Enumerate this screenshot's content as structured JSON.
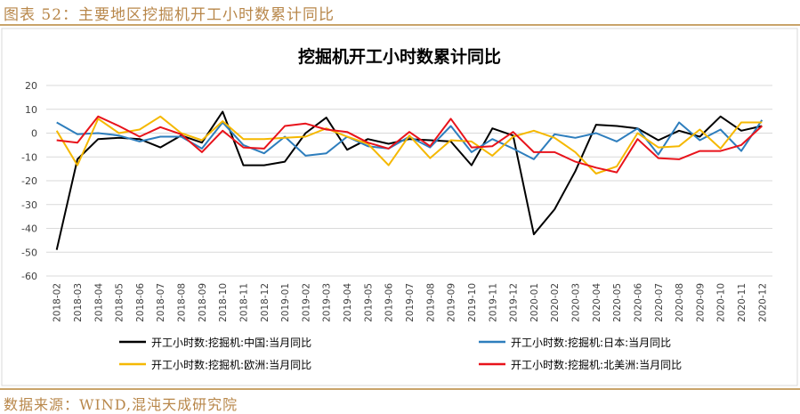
{
  "figure_caption": "图表 52：主要地区挖掘机开工小时数累计同比",
  "source": "数据来源：WIND,混沌天成研究院",
  "colors": {
    "caption": "#b8874a",
    "rule": "#c9a46a"
  },
  "chart_data": {
    "type": "line",
    "title": "挖掘机开工小时数累计同比",
    "xlabel": "",
    "ylabel": "",
    "ylim": [
      -60,
      20
    ],
    "yticks": [
      20,
      10,
      0,
      -10,
      -20,
      -30,
      -40,
      -50,
      -60
    ],
    "grid": true,
    "legend_position": "bottom",
    "x": [
      "2018-02",
      "2018-03",
      "2018-04",
      "2018-05",
      "2018-06",
      "2018-07",
      "2018-08",
      "2018-09",
      "2018-10",
      "2018-11",
      "2018-12",
      "2019-01",
      "2019-02",
      "2019-03",
      "2019-04",
      "2019-05",
      "2019-06",
      "2019-07",
      "2019-08",
      "2019-09",
      "2019-10",
      "2019-11",
      "2019-12",
      "2020-01",
      "2020-02",
      "2020-03",
      "2020-04",
      "2020-05",
      "2020-06",
      "2020-07",
      "2020-08",
      "2020-09",
      "2020-10",
      "2020-11",
      "2020-12"
    ],
    "series": [
      {
        "name": "开工小时数:挖掘机:中国:当月同比",
        "color": "#000000",
        "values": [
          -49,
          -11,
          -2.5,
          -2,
          -2.5,
          -6,
          -1,
          -4,
          9,
          -13.5,
          -13.5,
          -12,
          0,
          6.5,
          -7,
          -2.5,
          -4.5,
          -2.5,
          -3,
          -3.5,
          -13.5,
          2,
          -1,
          -42.5,
          -32,
          -16,
          3.5,
          3,
          2,
          -3,
          1,
          -1.5,
          7,
          1,
          3
        ]
      },
      {
        "name": "开工小时数:挖掘机:日本:当月同比",
        "color": "#2e7ebd",
        "values": [
          4.5,
          -0.5,
          0,
          -1,
          -3.5,
          -1.5,
          -1.5,
          -6.5,
          4.5,
          -5,
          -8.5,
          -1.5,
          -9.5,
          -8.5,
          -1.5,
          -5.5,
          -6.5,
          -1.5,
          -6,
          3,
          -8,
          -2.5,
          -6.5,
          -11,
          -0.5,
          -2,
          0,
          -3.5,
          2,
          -9,
          4.5,
          -3,
          1.5,
          -7.5,
          5.5
        ]
      },
      {
        "name": "开工小时数:挖掘机:欧洲:当月同比",
        "color": "#f5b800",
        "values": [
          1,
          -13.5,
          6,
          0,
          1.5,
          7,
          0,
          -3,
          5,
          -2.5,
          -2.5,
          -2,
          -1.5,
          2,
          -1.5,
          -4.5,
          -13.5,
          -1,
          -10.5,
          -3,
          -3.5,
          -9.5,
          -1.5,
          1,
          -2,
          -8,
          -17,
          -14,
          0,
          -6,
          -5.5,
          1.5,
          -6.5,
          4.5,
          4.5
        ]
      },
      {
        "name": "开工小时数:挖掘机:北美洲:当月同比",
        "color": "#e8131b",
        "values": [
          -3,
          -4,
          7,
          3,
          -1.5,
          2.5,
          -0.5,
          -8,
          1,
          -6,
          -6.5,
          3,
          4,
          1.5,
          0.5,
          -4,
          -6.5,
          0.5,
          -5.5,
          6,
          -6,
          -5.5,
          0.5,
          -8,
          -8,
          -12,
          -14.5,
          -16.5,
          -2.5,
          -10.5,
          -11,
          -7.5,
          -7.5,
          -5,
          3
        ]
      }
    ]
  }
}
